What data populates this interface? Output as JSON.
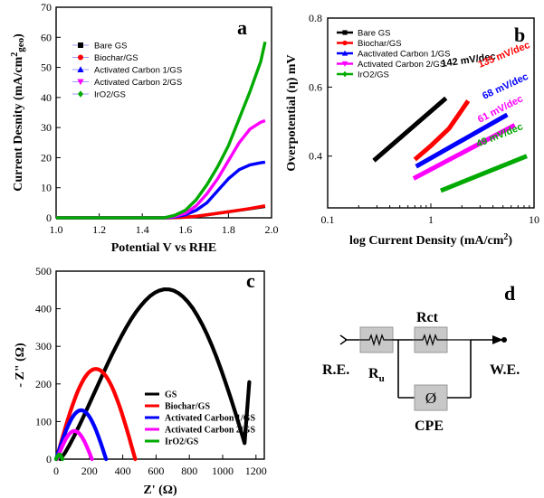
{
  "chart_data": [
    {
      "type": "line",
      "panel": "a",
      "xlabel": "Potential V vs RHE",
      "ylabel": "Current Desnity (mA/cm2geo)",
      "ylabel_parts": {
        "main": "Current Desnity (mA/cm",
        "sup": "2",
        "sub": "geo",
        "end": ")"
      },
      "xlim": [
        1.0,
        2.0
      ],
      "ylim": [
        0,
        70
      ],
      "xticks": [
        "1.0",
        "1.2",
        "1.4",
        "1.6",
        "1.8",
        "2.0"
      ],
      "yticks": [
        "0",
        "10",
        "20",
        "30",
        "40",
        "50",
        "60",
        "70"
      ],
      "legend_position": "top-left",
      "series": [
        {
          "name": "Bare GS",
          "color": "#000000",
          "marker": "square",
          "x": [
            1.0,
            1.2,
            1.4,
            1.5,
            1.55,
            1.6,
            1.65,
            1.7,
            1.8,
            1.9,
            1.97
          ],
          "y": [
            0,
            0,
            0,
            0,
            0.05,
            0.2,
            0.5,
            1.0,
            2.0,
            3.0,
            3.8
          ]
        },
        {
          "name": "Biochar/GS",
          "color": "#ff0000",
          "marker": "circle",
          "x": [
            1.0,
            1.2,
            1.4,
            1.5,
            1.55,
            1.6,
            1.65,
            1.7,
            1.8,
            1.9,
            1.97
          ],
          "y": [
            0,
            0,
            0,
            0,
            0.05,
            0.2,
            0.5,
            1.0,
            2.0,
            3.1,
            4.0
          ]
        },
        {
          "name": "Activated Carbon 1/GS",
          "color": "#0000ff",
          "marker": "triangle",
          "x": [
            1.0,
            1.2,
            1.4,
            1.5,
            1.55,
            1.6,
            1.65,
            1.7,
            1.75,
            1.8,
            1.85,
            1.9,
            1.95,
            1.97
          ],
          "y": [
            0,
            0,
            0,
            0,
            0.3,
            1.0,
            2.5,
            5.0,
            9.0,
            13.0,
            16.0,
            17.6,
            18.3,
            18.5
          ]
        },
        {
          "name": "Activated Carbon 2/GS",
          "color": "#ff00ff",
          "marker": "triangle-down",
          "x": [
            1.0,
            1.2,
            1.4,
            1.5,
            1.55,
            1.6,
            1.65,
            1.7,
            1.75,
            1.8,
            1.85,
            1.9,
            1.95,
            1.97
          ],
          "y": [
            0,
            0,
            0,
            0,
            0.5,
            1.5,
            4.0,
            8.0,
            13.0,
            19.0,
            25.0,
            29.5,
            31.8,
            32.3
          ]
        },
        {
          "name": "IrO2/GS",
          "color": "#00aa00",
          "marker": "diamond",
          "x": [
            1.0,
            1.2,
            1.4,
            1.5,
            1.55,
            1.6,
            1.65,
            1.7,
            1.75,
            1.8,
            1.85,
            1.9,
            1.95,
            1.97
          ],
          "y": [
            0,
            0,
            0,
            0,
            0.8,
            2.5,
            6.0,
            11.0,
            17.0,
            24.0,
            33.0,
            42.0,
            52.0,
            58.5
          ]
        }
      ]
    },
    {
      "type": "line",
      "panel": "b",
      "xlabel": "log Current Density (mA/cm2)",
      "xlabel_parts": {
        "main": "log Current Density (mA/cm",
        "sup": "2",
        "end": ")"
      },
      "ylabel": "Overpotential (η) mV",
      "xscale": "log",
      "xlim": [
        0.1,
        10
      ],
      "ylim": [
        0.25,
        0.8
      ],
      "xticks": [
        "0.1",
        "1",
        "10"
      ],
      "yticks": [
        "0.4",
        "0.6",
        "0.8"
      ],
      "legend_position": "top-left",
      "series": [
        {
          "name": "Bare GS",
          "color": "#000000",
          "x": [
            0.28,
            1.4
          ],
          "y": [
            0.387,
            0.568
          ],
          "slope_label": "142 mV/dec"
        },
        {
          "name": "Biochar/GS",
          "color": "#ff0000",
          "x": [
            0.7,
            1.0,
            1.5,
            2.3
          ],
          "y": [
            0.39,
            0.43,
            0.48,
            0.56
          ],
          "slope_label": "135 mV/dec"
        },
        {
          "name": "Aactivated Carbon 1/GS",
          "color": "#0000ff",
          "x": [
            0.72,
            5.5
          ],
          "y": [
            0.37,
            0.52
          ],
          "slope_label": "68 mV/dec"
        },
        {
          "name": "Activated Carbon 2/GS",
          "color": "#ff00ff",
          "x": [
            0.68,
            6.5
          ],
          "y": [
            0.335,
            0.49
          ],
          "slope_label": "61 mV/dec"
        },
        {
          "name": "IrO2/GS",
          "color": "#00aa00",
          "x": [
            1.25,
            8.5
          ],
          "y": [
            0.3,
            0.4
          ],
          "slope_label": "49 mV/dec"
        }
      ]
    },
    {
      "type": "line",
      "panel": "c",
      "xlabel": "Z' (Ω)",
      "ylabel": "- Z\" (Ω)",
      "xlim": [
        0,
        1250
      ],
      "ylim": [
        0,
        500
      ],
      "xticks": [
        "0",
        "200",
        "400",
        "600",
        "800",
        "1000",
        "1200"
      ],
      "yticks": [
        "0",
        "100",
        "200",
        "300",
        "400",
        "500"
      ],
      "legend_position": "bottom-right",
      "series": [
        {
          "name": "GS",
          "color": "#000000",
          "center": 650,
          "radius": 500,
          "peak": 452,
          "x_end": 1160
        },
        {
          "name": "Biochar/GS",
          "color": "#ff0000",
          "center": 240,
          "radius": 240,
          "peak": 240,
          "x_end": 475
        },
        {
          "name": "Activated Carbon 1/GS",
          "color": "#0000ff",
          "center": 145,
          "radius": 145,
          "peak": 130,
          "x_end": 300
        },
        {
          "name": "Activated Carbon 2/GS",
          "color": "#ff00ff",
          "center": 120,
          "radius": 110,
          "peak": 75,
          "x_end": 215
        },
        {
          "name": "IrO2/GS",
          "color": "#00aa00",
          "center": 20,
          "radius": 18,
          "peak": 12,
          "x_end": 38
        }
      ]
    }
  ],
  "panels": {
    "a": "a",
    "b": "b",
    "c": "c",
    "d": "d"
  },
  "circuit": {
    "re": "R.E.",
    "we": "W.E.",
    "ru": "R",
    "ru_sub": "u",
    "rct": "Rct",
    "cpe": "CPE",
    "cpe_symbol": "Ø"
  }
}
